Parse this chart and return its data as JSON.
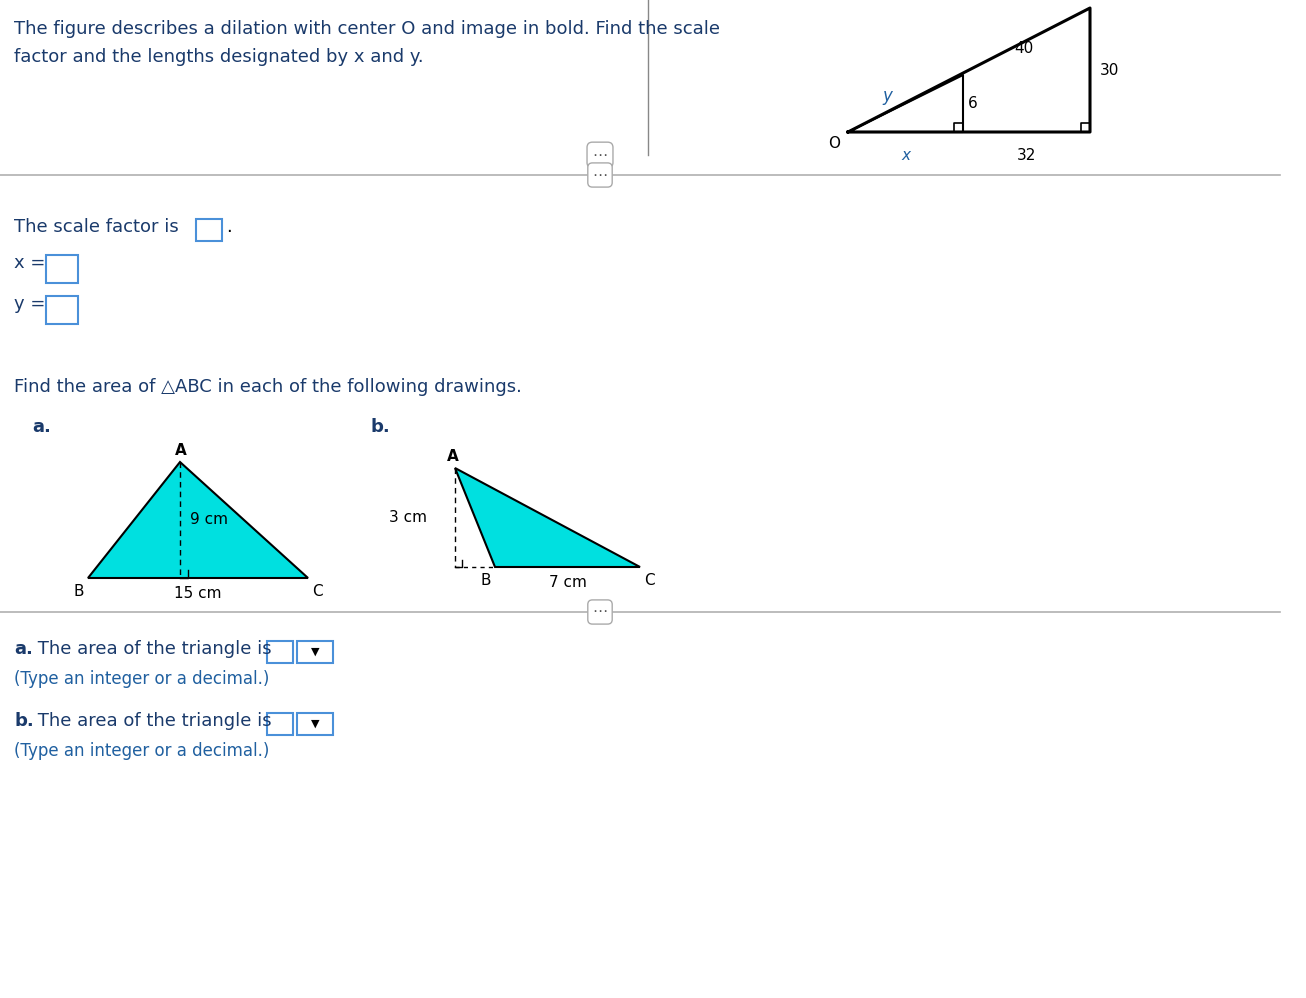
{
  "title_line1": "The figure describes a dilation with center O and image in bold. Find the scale",
  "title_line2": "factor and the lengths designated by x and y.",
  "bg_color": "#ffffff",
  "separator_color": "#b0b0b0",
  "scale_factor_text": "The scale factor is",
  "find_area_text": "Find the area of △ABC in each of the following drawings.",
  "tri_a_fill": "#00e0e0",
  "tri_a_base_label": "15 cm",
  "tri_a_height_label": "9 cm",
  "tri_b_fill": "#00e0e0",
  "tri_b_base_label": "7 cm",
  "tri_b_height_label": "3 cm",
  "dil_top": "40",
  "dil_right": "30",
  "dil_bottom": "32",
  "dil_inner_h": "6",
  "dil_x": "x",
  "dil_y": "y",
  "type_text": "(Type an integer or a decimal.)",
  "text_dark": "#1a3a6b",
  "text_blue": "#2060a0",
  "box_color": "#4a90d9"
}
